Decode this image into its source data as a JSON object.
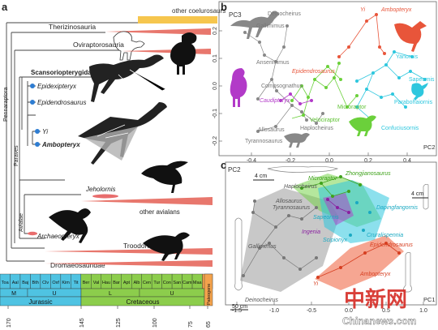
{
  "panels": {
    "a": "a",
    "b": "b",
    "c": "c"
  },
  "tree": {
    "clades": {
      "coelurosaurs": "other coelurosaurs",
      "therizinosauria": "Therizinosauria",
      "oviraptorosauria": "Oviraptorosauria",
      "scansoriopterygidae": "Scansoriopterygidae",
      "epidexipteryx": "Epidexipteryx",
      "epidendrosaurus": "Epidendrosaurus",
      "yi": "Yi",
      "ambopteryx": "Ambopteryx",
      "jeholornis": "Jeholornis",
      "avialans": "other avialans",
      "archaeopteryx": "Archaeopteryx",
      "troodontidae": "Troodontidae",
      "dromaeosauridae": "Dromaeosauridae"
    },
    "side_labels": {
      "pennaraptora": "Pennaraptora",
      "paraves": "Paraves",
      "avialae": "Avialae"
    },
    "colors": {
      "coelurosaurs": "#f6c64e",
      "range": "#e8776d",
      "node": "#2e7dd2",
      "jeholornis": "#e86d6d"
    }
  },
  "timescale": {
    "stages_row1": [
      "Toa",
      "Aal",
      "Baj",
      "Bth",
      "Clv",
      "Oxf",
      "Kim",
      "Tit",
      "Ber",
      "Val",
      "Hau",
      "Bar",
      "Apt",
      "Alb",
      "Cen",
      "Tur",
      "Con",
      "San",
      "Cam",
      "Maa",
      "Pal"
    ],
    "epochs": [
      "M",
      "U",
      "L",
      "U"
    ],
    "periods": [
      "Jurassic",
      "Cretaceous",
      "Paleogene"
    ],
    "ticks": [
      "170",
      "145",
      "125",
      "100",
      "75",
      "65"
    ],
    "colors": {
      "jurassic": "#4fc3e2",
      "cretaceous": "#8ccd4c",
      "paleogene": "#f3a24c"
    }
  },
  "scatter_b": {
    "y_axis": "PC3",
    "x_axis": "PC2",
    "x_ticks": [
      "-0.4",
      "-0.2",
      "0.0",
      "0.2",
      "0.4"
    ],
    "y_ticks": [
      "0.2",
      "0.1",
      "0.0",
      "-0.1",
      "-0.2"
    ],
    "labels": {
      "deinocheirus": "Deinocheirus",
      "gallimimus": "Gallimimus",
      "anserimimus": "Anserimimus",
      "compsognathus": "Compsognathus",
      "allosaurus": "Allosaurus",
      "tyrannosaurus": "Tyrannosaurus",
      "haplocheirus": "Haplocheirus",
      "velociraptor": "Velociraptor",
      "microraptor": "Microraptor",
      "caudipteryx": "Caudipteryx",
      "epidendrosaurus": "Epidendrosaurus",
      "yi": "Yi",
      "ambopteryx": "Ambopteryx",
      "yanornis": "Yanornis",
      "sapeornis": "Sapeornis",
      "parabohaiornis": "Parabohaiornis",
      "confuciusornis": "Confuciusornis"
    }
  },
  "scatter_c": {
    "y_axis": "PC2",
    "x_axis": "PC1",
    "x_ticks": [
      "-1.5",
      "-1.0",
      "-0.5",
      "0.0",
      "0.5",
      "1.0"
    ],
    "labels": {
      "microraptor": "Microraptor",
      "zhongjianosaurus": "Zhongjianosaurus",
      "haplocheirus": "Haplocheirus",
      "allosaurus": "Allosaurus",
      "tyrannosaurus": "Tyrannosaurus",
      "dapingfangornis": "Dapingfangornis",
      "sapeornis": "Sapeornis",
      "ingenia": "Ingenia",
      "scipionyx": "Scipionyx",
      "cruralispennia": "Cruralispennia",
      "epidendrosaurus": "Epidendrosaurus",
      "gallimimus": "Gallimimus",
      "yi": "Yi",
      "ambopteryx": "Ambopteryx",
      "deinocheirus": "Deinocheirus"
    },
    "scale_bars": [
      "4 cm",
      "4 cm",
      "50 cm"
    ]
  },
  "watermark": {
    "mark": "中新网",
    "url": "Chinanews.com"
  }
}
